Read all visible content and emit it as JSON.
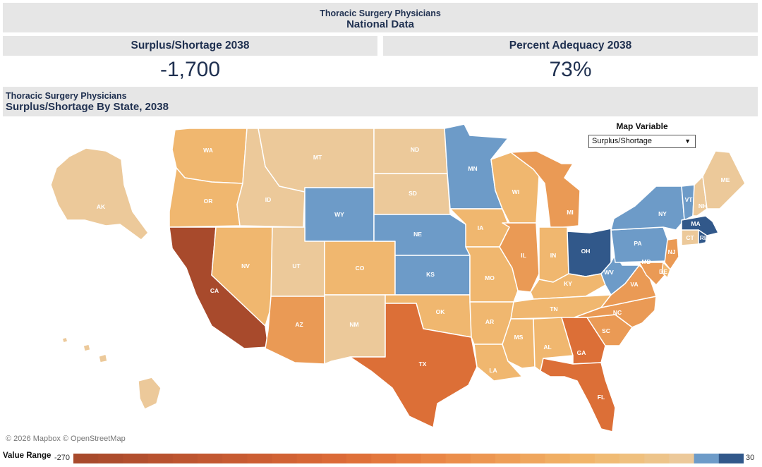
{
  "header": {
    "subtitle": "Thoracic Surgery Physicians",
    "title": "National Data"
  },
  "kpis": [
    {
      "label": "Surplus/Shortage 2038",
      "value": "-1,700"
    },
    {
      "label": "Percent Adequacy 2038",
      "value": "73%"
    }
  ],
  "section": {
    "subtitle": "Thoracic Surgery Physicians",
    "title": "Surplus/Shortage By State, 2038"
  },
  "map_variable": {
    "label": "Map Variable",
    "selected": "Surplus/Shortage"
  },
  "attribution": "© 2026 Mapbox  © OpenStreetMap",
  "legend": {
    "label": "Value Range",
    "min": "-270",
    "max": "30"
  },
  "colors": {
    "dark_red": "#a84a2c",
    "red": "#c25530",
    "orange": "#dc6f37",
    "light_orange": "#ea9a55",
    "peach": "#f0b76f",
    "tan": "#ecc99a",
    "blue": "#6d9bc8",
    "dark_blue": "#31588a"
  },
  "state_labels": {
    "WA": "WA",
    "OR": "OR",
    "CA": "CA",
    "NV": "NV",
    "ID": "ID",
    "MT": "MT",
    "WY": "WY",
    "UT": "UT",
    "AZ": "AZ",
    "CO": "CO",
    "NM": "NM",
    "ND": "ND",
    "SD": "SD",
    "NE": "NE",
    "KS": "KS",
    "OK": "OK",
    "TX": "TX",
    "MN": "MN",
    "IA": "IA",
    "MO": "MO",
    "AR": "AR",
    "LA": "LA",
    "WI": "WI",
    "IL": "IL",
    "MI": "MI",
    "IN": "IN",
    "OH": "OH",
    "KY": "KY",
    "TN": "TN",
    "MS": "MS",
    "AL": "AL",
    "GA": "GA",
    "FL": "FL",
    "SC": "SC",
    "NC": "NC",
    "VA": "VA",
    "WV": "WV",
    "PA": "PA",
    "NY": "NY",
    "VT": "VT",
    "NH": "NH",
    "ME": "ME",
    "MA": "MA",
    "CT": "CT",
    "RI": "RI",
    "NJ": "NJ",
    "DE": "DE",
    "MD": "MD",
    "AK": "AK"
  }
}
